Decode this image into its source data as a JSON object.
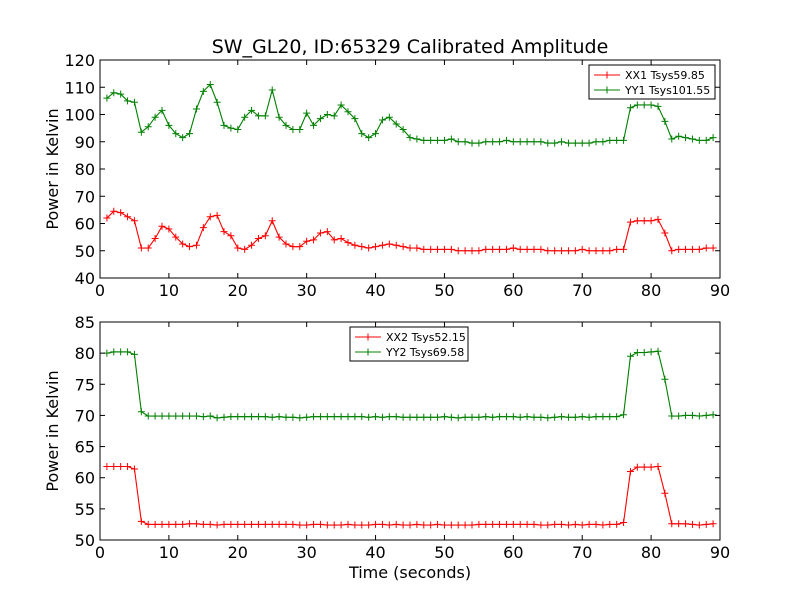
{
  "chart_data": [
    {
      "type": "line",
      "title": "SW_GL20, ID:65329 Calibrated Amplitude",
      "xlabel": "",
      "ylabel": "Power in Kelvin",
      "xlim": [
        0,
        90
      ],
      "ylim": [
        40,
        120
      ],
      "xticks": [
        "0",
        "10",
        "20",
        "30",
        "40",
        "50",
        "60",
        "70",
        "80",
        "90"
      ],
      "yticks": [
        "40",
        "50",
        "60",
        "70",
        "80",
        "90",
        "100",
        "110",
        "120"
      ],
      "grid": false,
      "legend_position": "top-right",
      "x": [
        1,
        2,
        3,
        4,
        5,
        6,
        7,
        8,
        9,
        10,
        11,
        12,
        13,
        14,
        15,
        16,
        17,
        18,
        19,
        20,
        21,
        22,
        23,
        24,
        25,
        26,
        27,
        28,
        29,
        30,
        31,
        32,
        33,
        34,
        35,
        36,
        37,
        38,
        39,
        40,
        41,
        42,
        43,
        44,
        45,
        46,
        47,
        48,
        49,
        50,
        51,
        52,
        53,
        54,
        55,
        56,
        57,
        58,
        59,
        60,
        61,
        62,
        63,
        64,
        65,
        66,
        67,
        68,
        69,
        70,
        71,
        72,
        73,
        74,
        75,
        76,
        77,
        78,
        79,
        80,
        81,
        82,
        83,
        84,
        85,
        86,
        87,
        88,
        89
      ],
      "series": [
        {
          "name": "XX1 Tsys59.85",
          "color": "#ff0000",
          "values": [
            62,
            64.5,
            64,
            62.5,
            61,
            51,
            51,
            54.5,
            59,
            58,
            55,
            52.5,
            51.5,
            52,
            58.5,
            62.5,
            63,
            57,
            55.5,
            51,
            50.5,
            52,
            54.5,
            55.5,
            61,
            55,
            52.5,
            51.5,
            51.5,
            53.5,
            54,
            56.5,
            57,
            54,
            54.5,
            53,
            52,
            51.5,
            51,
            51.5,
            52,
            52.5,
            52,
            51.5,
            51,
            51,
            50.5,
            50.5,
            50.5,
            50.5,
            50.5,
            50,
            50,
            50,
            50,
            50.5,
            50.5,
            50.5,
            50.5,
            51,
            50.5,
            50.5,
            50.5,
            50.5,
            50,
            50,
            50,
            50,
            50,
            50.5,
            50,
            50,
            50,
            50,
            50.5,
            50.5,
            60.5,
            61,
            61,
            61,
            61.5,
            56.5,
            50,
            50.5,
            50.5,
            50.5,
            50.5,
            51,
            51
          ]
        },
        {
          "name": "YY1 Tsys101.55",
          "color": "#008000",
          "values": [
            106,
            108,
            107.5,
            105,
            104.5,
            93.5,
            95.5,
            99,
            101.5,
            96,
            93,
            91.5,
            93,
            102,
            108.5,
            111,
            104.5,
            96,
            95,
            94.5,
            99,
            101.5,
            99.5,
            99.5,
            109,
            99,
            96,
            94.5,
            94.5,
            100.5,
            96,
            98.5,
            100,
            99.5,
            103.5,
            101,
            98.5,
            93,
            91.5,
            93,
            98,
            99,
            96.5,
            94.5,
            91.5,
            91,
            90.5,
            90.5,
            90.5,
            90.5,
            91,
            90,
            90,
            89.5,
            89.5,
            90,
            90,
            90,
            90.5,
            90,
            90,
            90,
            90,
            90,
            89.5,
            89.5,
            90,
            89.5,
            89.5,
            89.5,
            89.5,
            90,
            90,
            90.5,
            90.5,
            90.5,
            102.5,
            103.5,
            103.5,
            103.5,
            103,
            97.5,
            91,
            92,
            91.5,
            91,
            90.5,
            90.5,
            91.5
          ]
        }
      ]
    },
    {
      "type": "line",
      "title": "",
      "xlabel": "Time (seconds)",
      "ylabel": "Power in Kelvin",
      "xlim": [
        0,
        90
      ],
      "ylim": [
        50,
        85
      ],
      "xticks": [
        "0",
        "10",
        "20",
        "30",
        "40",
        "50",
        "60",
        "70",
        "80",
        "90"
      ],
      "yticks": [
        "50",
        "55",
        "60",
        "65",
        "70",
        "75",
        "80",
        "85"
      ],
      "grid": false,
      "legend_position": "top-center",
      "x": [
        1,
        2,
        3,
        4,
        5,
        6,
        7,
        8,
        9,
        10,
        11,
        12,
        13,
        14,
        15,
        16,
        17,
        18,
        19,
        20,
        21,
        22,
        23,
        24,
        25,
        26,
        27,
        28,
        29,
        30,
        31,
        32,
        33,
        34,
        35,
        36,
        37,
        38,
        39,
        40,
        41,
        42,
        43,
        44,
        45,
        46,
        47,
        48,
        49,
        50,
        51,
        52,
        53,
        54,
        55,
        56,
        57,
        58,
        59,
        60,
        61,
        62,
        63,
        64,
        65,
        66,
        67,
        68,
        69,
        70,
        71,
        72,
        73,
        74,
        75,
        76,
        77,
        78,
        79,
        80,
        81,
        82,
        83,
        84,
        85,
        86,
        87,
        88,
        89
      ],
      "series": [
        {
          "name": "XX2 Tsys52.15",
          "color": "#ff0000",
          "values": [
            61.8,
            61.8,
            61.8,
            61.8,
            61.4,
            53,
            52.5,
            52.5,
            52.5,
            52.5,
            52.5,
            52.5,
            52.6,
            52.6,
            52.5,
            52.5,
            52.4,
            52.5,
            52.5,
            52.5,
            52.5,
            52.5,
            52.5,
            52.5,
            52.5,
            52.5,
            52.5,
            52.5,
            52.4,
            52.4,
            52.5,
            52.5,
            52.4,
            52.4,
            52.4,
            52.5,
            52.4,
            52.4,
            52.4,
            52.5,
            52.5,
            52.4,
            52.5,
            52.4,
            52.4,
            52.5,
            52.4,
            52.4,
            52.5,
            52.4,
            52.4,
            52.4,
            52.4,
            52.4,
            52.5,
            52.5,
            52.5,
            52.5,
            52.5,
            52.5,
            52.5,
            52.5,
            52.5,
            52.4,
            52.4,
            52.5,
            52.5,
            52.4,
            52.5,
            52.4,
            52.5,
            52.5,
            52.4,
            52.5,
            52.5,
            52.8,
            61,
            61.7,
            61.7,
            61.7,
            61.8,
            57.5,
            52.6,
            52.6,
            52.6,
            52.5,
            52.4,
            52.5,
            52.6
          ]
        },
        {
          "name": "YY2 Tsys69.58",
          "color": "#008000",
          "values": [
            80,
            80.2,
            80.2,
            80.2,
            79.8,
            70.6,
            69.9,
            69.9,
            69.9,
            69.9,
            69.9,
            69.9,
            69.9,
            69.9,
            69.8,
            69.9,
            69.6,
            69.7,
            69.8,
            69.8,
            69.8,
            69.8,
            69.8,
            69.8,
            69.7,
            69.8,
            69.7,
            69.7,
            69.6,
            69.7,
            69.8,
            69.8,
            69.8,
            69.8,
            69.8,
            69.8,
            69.8,
            69.8,
            69.7,
            69.8,
            69.7,
            69.8,
            69.8,
            69.7,
            69.7,
            69.7,
            69.7,
            69.7,
            69.7,
            69.8,
            69.7,
            69.6,
            69.7,
            69.7,
            69.7,
            69.8,
            69.7,
            69.8,
            69.8,
            69.8,
            69.7,
            69.8,
            69.7,
            69.7,
            69.6,
            69.7,
            69.8,
            69.7,
            69.7,
            69.8,
            69.7,
            69.8,
            69.8,
            69.8,
            69.8,
            70.1,
            79.5,
            80.1,
            80.1,
            80.2,
            80.3,
            75.8,
            69.9,
            69.9,
            70,
            70,
            69.9,
            70,
            70.1
          ]
        }
      ]
    }
  ]
}
